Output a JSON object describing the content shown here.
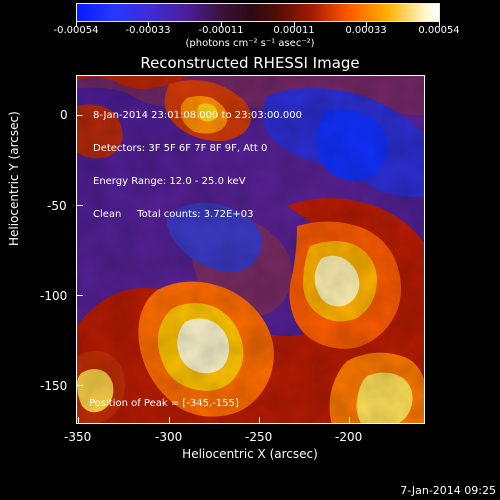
{
  "colorbar": {
    "ticks": [
      "-0.00054",
      "-0.00033",
      "-0.00011",
      "0.00011",
      "0.00033",
      "0.00054"
    ],
    "unit_label": "(photons cm⁻² s⁻¹ asec⁻²)"
  },
  "title": "Reconstructed RHESSI Image",
  "annotation": {
    "line1": "8-Jan-2014 23:01:08.000 to 23:03:00.000",
    "line2": "Detectors: 3F 5F 6F 7F 8F 9F, Att 0",
    "line3": "Energy Range: 12.0 - 25.0 keV",
    "line4": "Clean     Total counts: 3.72E+03"
  },
  "peak_text": "Position of Peak = [-345,-155]",
  "x_axis": {
    "label": "Heliocentric X (arcsec)",
    "ticks": [
      "-350",
      "-300",
      "-250",
      "-200"
    ]
  },
  "y_axis": {
    "label": "Heliocentric Y (arcsec)",
    "ticks": [
      "0",
      "-50",
      "-100",
      "-150"
    ]
  },
  "footer_date": "7-Jan-2014 09:25",
  "colors": {
    "background": "#000000",
    "foreground": "#ffffff"
  }
}
